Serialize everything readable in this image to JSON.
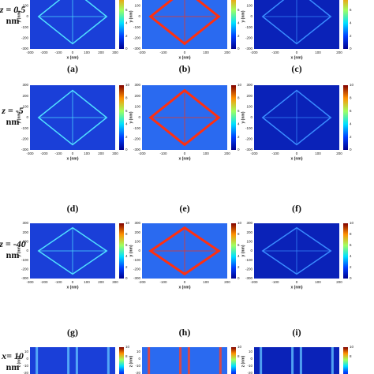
{
  "rows": [
    {
      "label": [
        "z = 0.5",
        "nm"
      ],
      "panels": [
        "(a)",
        "(b)",
        "(c)"
      ]
    },
    {
      "label": [
        "z = -5",
        "nm"
      ],
      "panels": [
        "(d)",
        "(e)",
        "(f)"
      ]
    },
    {
      "label": [
        "z = -40",
        "nm"
      ],
      "panels": [
        "(g)",
        "(h)",
        "(i)"
      ]
    },
    {
      "label": [
        "x= 10",
        "nm"
      ],
      "panels": []
    }
  ],
  "columns": [
    {
      "x_ticks": [
        "-300",
        "-200",
        "-100",
        "0",
        "100",
        "200",
        "300"
      ]
    },
    {
      "x_ticks": [
        "-200",
        "-100",
        "0",
        "100",
        "200"
      ]
    },
    {
      "x_ticks": [
        "-200",
        "-100",
        "0",
        "100",
        "200"
      ]
    }
  ],
  "y_ticks": [
    "300",
    "200",
    "100",
    "0",
    "-100",
    "-200",
    "-300"
  ],
  "colorbar_ticks": [
    "10",
    "8",
    "6",
    "4",
    "2",
    "0"
  ],
  "x_axis_label": "x (nm)",
  "y_axis_label": "y (nm)",
  "last_row": {
    "y_ticks": [
      "10",
      "0",
      "-10",
      "-20"
    ],
    "y_axis_label": "z (nm)",
    "colorbar_ticks": [
      "10",
      "8"
    ]
  }
}
